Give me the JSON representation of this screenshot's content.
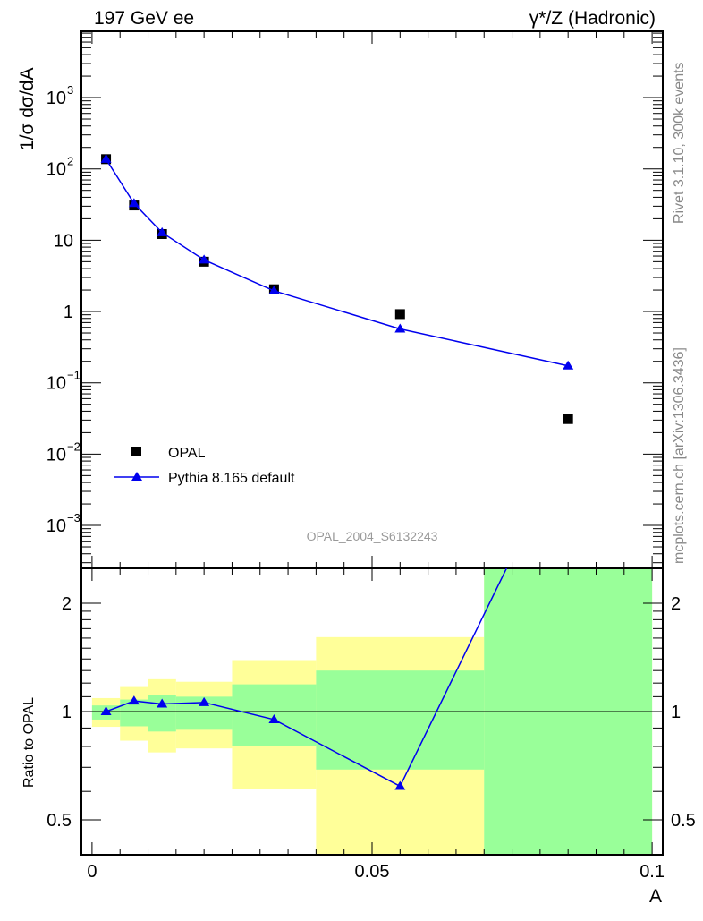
{
  "chart_data": [
    {
      "type": "scatter",
      "title_left": "197 GeV ee",
      "title_right": "γ*/Z (Hadronic)",
      "ylabel": "1/σ dσ/dA",
      "yscale": "log",
      "ylim": [
        0.00025,
        8500
      ],
      "xlim": [
        -0.0019,
        0.1019
      ],
      "ytick_labels": [
        {
          "base": "10",
          "exp": "3",
          "value": 1000
        },
        {
          "base": "10",
          "exp": "2",
          "value": 100
        },
        {
          "base": "10",
          "exp": "",
          "value": 10
        },
        {
          "base": "1",
          "exp": "",
          "value": 1
        },
        {
          "base": "10",
          "exp": "−1",
          "value": 0.1
        },
        {
          "base": "10",
          "exp": "−2",
          "value": 0.01
        },
        {
          "base": "10",
          "exp": "−3",
          "value": 0.001
        }
      ],
      "series": [
        {
          "name": "OPAL",
          "marker": "square",
          "color": "#000000",
          "x": [
            0.0025,
            0.0075,
            0.0125,
            0.02,
            0.0325,
            0.055,
            0.085
          ],
          "y": [
            137,
            30.7,
            12.2,
            5.0,
            2.05,
            0.92,
            0.031
          ]
        },
        {
          "name": "Pythia 8.165 default",
          "marker": "triangle",
          "color": "#0000ee",
          "x": [
            0.0025,
            0.0075,
            0.0125,
            0.02,
            0.0325,
            0.055,
            0.085
          ],
          "y": [
            137,
            32.8,
            12.8,
            5.3,
            1.95,
            0.57,
            0.173
          ]
        }
      ],
      "legend_placement": "bottom-left",
      "watermark": "OPAL_2004_S6132243",
      "side_label_top": "Rivet 3.1.10,  300k events",
      "side_label_bottom": "mcplots.cern.ch [arXiv:1306.3436]"
    },
    {
      "type": "line",
      "ylabel": "Ratio to OPAL",
      "xlabel": "A",
      "yscale": "log",
      "ylim": [
        0.4,
        2.5
      ],
      "xlim": [
        -0.0019,
        0.1019
      ],
      "xtick_labels": [
        {
          "label": "0",
          "value": 0
        },
        {
          "label": "0.05",
          "value": 0.05
        },
        {
          "label": "0.1",
          "value": 0.1
        }
      ],
      "ytick_labels": [
        {
          "label": "2",
          "value": 2
        },
        {
          "label": "1",
          "value": 1
        },
        {
          "label": "0.5",
          "value": 0.5
        }
      ],
      "bin_edges": [
        0,
        0.005,
        0.01,
        0.015,
        0.025,
        0.04,
        0.07,
        0.1
      ],
      "band_total": {
        "color": "#ffff99",
        "lo": [
          0.907,
          0.83,
          0.77,
          0.79,
          0.61,
          0.3,
          0.3
        ],
        "hi": [
          1.09,
          1.17,
          1.23,
          1.21,
          1.39,
          1.61,
          3.0
        ]
      },
      "band_stat": {
        "color": "#99ff99",
        "lo": [
          0.95,
          0.91,
          0.88,
          0.89,
          0.8,
          0.69,
          0.3
        ],
        "hi": [
          1.04,
          1.08,
          1.11,
          1.1,
          1.19,
          1.3,
          3.0
        ]
      },
      "ratio": {
        "name": "Pythia 8.165 default",
        "color": "#0000ee",
        "x": [
          0.0025,
          0.0075,
          0.0125,
          0.02,
          0.0325,
          0.055,
          0.085
        ],
        "y": [
          1.0,
          1.07,
          1.05,
          1.06,
          0.95,
          0.62,
          5.6
        ]
      }
    }
  ]
}
